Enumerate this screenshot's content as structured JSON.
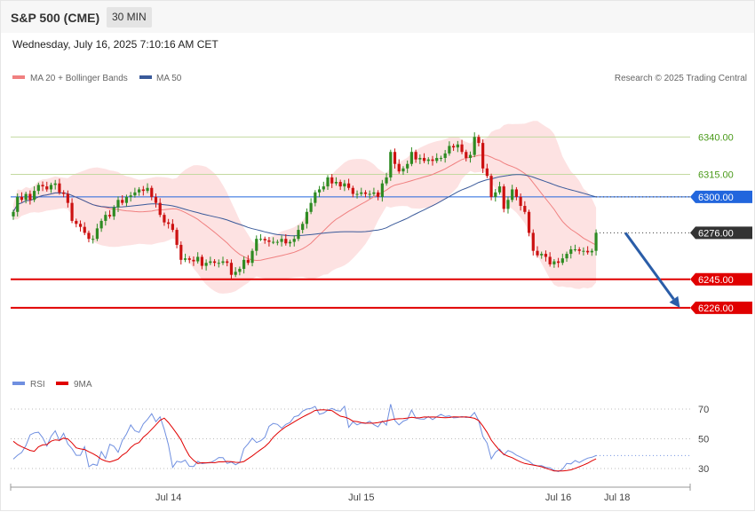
{
  "header": {
    "instrument": "S&P 500 (CME)",
    "timeframe": "30 MIN",
    "date": "Wednesday, July 16, 2025 7:10:16 AM CET"
  },
  "legend": {
    "ma20": "MA 20 + Bollinger Bands",
    "ma50": "MA 50",
    "credit": "Research © 2025 Trading Central",
    "rsi": "RSI",
    "rsi_ma": "9MA"
  },
  "colors": {
    "up": "#2e8b22",
    "down": "#cc1111",
    "band_fill": "#fde2e2",
    "ma20": "#f08080",
    "ma50": "#3a5a9a",
    "resistance": "#c3d9a0",
    "resistance_text": "#4a9a1a",
    "pivot": "#2266dd",
    "support": "#e00000",
    "arrow": "#2a5da8",
    "rsi": "#6f8fe0",
    "rsi_ma": "#e00000"
  },
  "chart_data": {
    "type": "candlestick",
    "ylim": [
      6191,
      6355
    ],
    "x_labels": [
      {
        "label": "Jul 14",
        "index": 37
      },
      {
        "label": "Jul 15",
        "index": 83
      },
      {
        "label": "Jul 16",
        "index": 130
      },
      {
        "label": "Jul 18",
        "index": 144
      }
    ],
    "levels": [
      {
        "value": 6340,
        "label": "6340.00",
        "kind": "resistance"
      },
      {
        "value": 6315,
        "label": "6315.00",
        "kind": "resistance"
      },
      {
        "value": 6300,
        "label": "6300.00",
        "kind": "pivot"
      },
      {
        "value": 6276,
        "label": "6276.00",
        "kind": "last"
      },
      {
        "value": 6245,
        "label": "6245.00",
        "kind": "support"
      },
      {
        "value": 6226,
        "label": "6226.00",
        "kind": "support"
      }
    ],
    "forecast_arrow": {
      "from_index": 146,
      "from_value": 6276,
      "to_index": 159,
      "to_value": 6226
    },
    "closes": [
      6290,
      6300,
      6298,
      6302,
      6298,
      6304,
      6308,
      6307,
      6305,
      6308,
      6309,
      6303,
      6302,
      6296,
      6284,
      6282,
      6280,
      6276,
      6272,
      6272,
      6279,
      6284,
      6288,
      6287,
      6293,
      6298,
      6296,
      6300,
      6301,
      6303,
      6305,
      6304,
      6306,
      6300,
      6296,
      6288,
      6283,
      6282,
      6278,
      6268,
      6258,
      6259,
      6258,
      6257,
      6260,
      6254,
      6256,
      6257,
      6256,
      6256,
      6257,
      6256,
      6248,
      6250,
      6252,
      6258,
      6256,
      6264,
      6272,
      6272,
      6271,
      6270,
      6270,
      6270,
      6272,
      6269,
      6270,
      6272,
      6278,
      6282,
      6290,
      6296,
      6303,
      6305,
      6307,
      6313,
      6309,
      6310,
      6307,
      6309,
      6306,
      6302,
      6302,
      6303,
      6302,
      6302,
      6303,
      6300,
      6309,
      6313,
      6330,
      6322,
      6317,
      6319,
      6322,
      6330,
      6325,
      6326,
      6324,
      6325,
      6324,
      6326,
      6326,
      6329,
      6334,
      6333,
      6335,
      6330,
      6326,
      6328,
      6340,
      6336,
      6319,
      6314,
      6300,
      6303,
      6307,
      6292,
      6298,
      6305,
      6300,
      6294,
      6290,
      6276,
      6264,
      6261,
      6262,
      6260,
      6255,
      6257,
      6256,
      6259,
      6262,
      6265,
      6265,
      6264,
      6264,
      6263,
      6264,
      6276
    ],
    "rsi": {
      "ylim": [
        14.5,
        84.5
      ],
      "levels": [
        70,
        50,
        30
      ],
      "rsi_values": [
        36.3,
        38.9,
        40.8,
        45.5,
        52.6,
        54,
        54.4,
        50.8,
        45.1,
        51.7,
        55.4,
        48.8,
        53.7,
        46.5,
        43.3,
        38.9,
        38.9,
        44.7,
        31.2,
        32.9,
        32.1,
        41.4,
        36.8,
        46.3,
        44.9,
        40.9,
        48.8,
        53.2,
        59.3,
        55.4,
        54.3,
        60,
        63,
        66.9,
        61.5,
        64.8,
        56.4,
        46,
        30.8,
        34.9,
        34.2,
        35.7,
        31.5,
        31.4,
        34.9,
        33.3,
        33.7,
        33.9,
        35.4,
        37.4,
        37.3,
        33.4,
        34.4,
        32.5,
        34.2,
        43.4,
        46.6,
        50.4,
        47.5,
        48.7,
        51,
        58.4,
        60.3,
        59.7,
        57.1,
        59.7,
        60.9,
        64.8,
        65.6,
        68.6,
        70,
        70.4,
        71.8,
        66.5,
        67.3,
        69.3,
        70.4,
        69.1,
        68.6,
        71.9,
        57.7,
        61.4,
        59.4,
        60.7,
        60.3,
        61.8,
        59.5,
        58,
        62,
        59.2,
        73.3,
        62.4,
        59.4,
        61.9,
        63,
        69.4,
        63.9,
        63.4,
        63.2,
        65,
        62.9,
        64.8,
        66.5,
        65,
        65.4,
        64.1,
        64.3,
        65,
        64.3,
        64.6,
        67.7,
        62.2,
        51.6,
        47.1,
        36.5,
        41,
        43.1,
        39.2,
        42.1,
        40.9,
        39,
        37.7,
        36.2,
        34.9,
        32.6,
        31.8,
        31.9,
        30.8,
        30.5,
        28.8,
        28,
        29.5,
        33.4,
        33.1,
        35.4,
        34,
        35.6,
        37,
        37.6,
        38.7
      ],
      "ma_values": [
        48.3,
        46.1,
        44.7,
        43.4,
        42.2,
        41.6,
        44.6,
        45.9,
        46.1,
        48.4,
        49.3,
        49,
        50.5,
        49.9,
        47.2,
        43.9,
        43.2,
        42.8,
        41.3,
        40,
        38.3,
        36.2,
        35.1,
        34.4,
        35.3,
        36.3,
        39,
        40.8,
        44.1,
        46.4,
        47.5,
        51.1,
        53.4,
        56.4,
        59.4,
        62.4,
        63.9,
        61,
        57.3,
        53.4,
        49.2,
        43.5,
        38.5,
        35.5,
        33.4,
        33.9,
        33.8,
        34.1,
        33.9,
        34.5,
        34.5,
        34.8,
        34.6,
        34.2,
        34.1,
        34.7,
        36.6,
        38.5,
        40.7,
        42.7,
        44.7,
        47.4,
        51,
        53.7,
        56.1,
        58.1,
        59.7,
        61.4,
        63.1,
        64.7,
        66.1,
        67.5,
        69.1,
        69.4,
        69.6,
        69.3,
        69,
        67.1,
        65.2,
        64.6,
        63.6,
        61.9,
        61.6,
        60.9,
        60.5,
        60.5,
        60.5,
        60.9,
        61.5,
        62,
        62.8,
        63.3,
        63.5,
        63.6,
        64,
        64.5,
        64.1,
        64.2,
        64.7,
        64.6,
        64.7,
        64.6,
        64.3,
        64.2,
        64.3,
        64.8,
        64.7,
        64.6,
        64.8,
        64.3,
        63.8,
        62.3,
        58.6,
        54.3,
        49.1,
        45.5,
        42.1,
        39.6,
        38.3,
        37.3,
        35.8,
        34.4,
        33.4,
        32.8,
        32.3,
        31.8,
        31.2,
        30.2,
        29.3,
        28.4,
        28.3,
        28.3,
        28.6,
        29.1,
        30.1,
        31.2,
        32.3,
        33.6,
        35.2,
        36.5
      ]
    }
  }
}
